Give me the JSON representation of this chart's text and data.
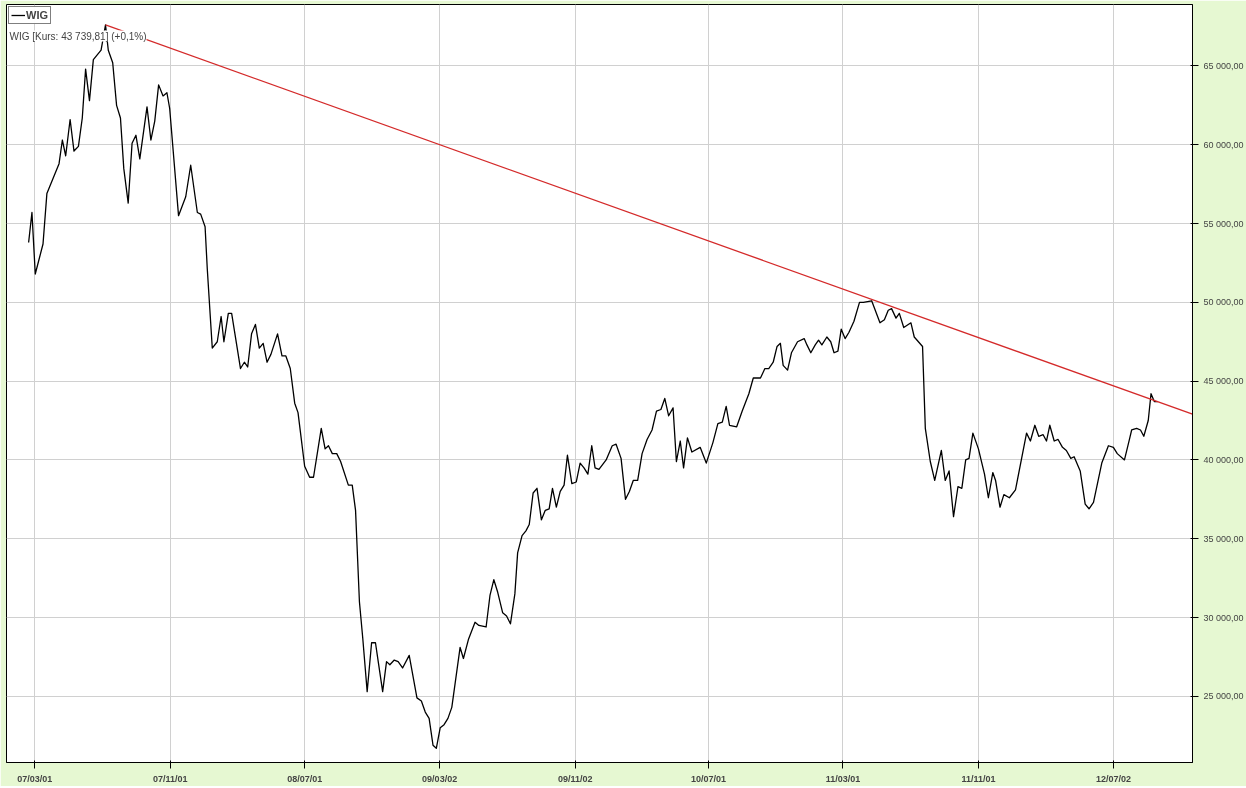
{
  "chart_data": {
    "type": "line",
    "annotations": [
      "WIG [Kurs: 43 739,81] (+0,1%)"
    ],
    "xlim": [
      "2007-01-09",
      "2012-11-22"
    ],
    "ylim": [
      20800,
      68900
    ],
    "xticks": [
      {
        "value": "2007-03-01",
        "label": "07/03/01"
      },
      {
        "value": "2007-11-01",
        "label": "07/11/01"
      },
      {
        "value": "2008-07-01",
        "label": "08/07/01"
      },
      {
        "value": "2009-03-02",
        "label": "09/03/02"
      },
      {
        "value": "2009-11-02",
        "label": "09/11/02"
      },
      {
        "value": "2010-07-01",
        "label": "10/07/01"
      },
      {
        "value": "2011-03-01",
        "label": "11/03/01"
      },
      {
        "value": "2011-11-01",
        "label": "11/11/01"
      },
      {
        "value": "2012-07-02",
        "label": "12/07/02"
      }
    ],
    "yticks": [
      {
        "value": 25000,
        "label": "25 000,00"
      },
      {
        "value": 30000,
        "label": "30 000,00"
      },
      {
        "value": 35000,
        "label": "35 000,00"
      },
      {
        "value": 40000,
        "label": "40 000,00"
      },
      {
        "value": 45000,
        "label": "45 000,00"
      },
      {
        "value": 50000,
        "label": "50 000,00"
      },
      {
        "value": 55000,
        "label": "55 000,00"
      },
      {
        "value": 60000,
        "label": "60 000,00"
      },
      {
        "value": 65000,
        "label": "65 000,00"
      }
    ],
    "grid": true,
    "legend": "top left",
    "series": [
      {
        "name": "WIG",
        "color": "#000000",
        "x": [
          "2007-02-18",
          "2007-02-24",
          "2007-03-02",
          "2007-03-16",
          "2007-03-23",
          "2007-04-14",
          "2007-04-20",
          "2007-04-26",
          "2007-05-04",
          "2007-05-11",
          "2007-05-19",
          "2007-05-26",
          "2007-06-01",
          "2007-06-08",
          "2007-06-15",
          "2007-06-29",
          "2007-07-07",
          "2007-07-12",
          "2007-07-20",
          "2007-07-27",
          "2007-08-03",
          "2007-08-09",
          "2007-08-17",
          "2007-08-24",
          "2007-08-31",
          "2007-09-07",
          "2007-09-20",
          "2007-09-27",
          "2007-10-04",
          "2007-10-11",
          "2007-10-19",
          "2007-10-26",
          "2007-10-31",
          "2007-11-16",
          "2007-11-29",
          "2007-12-08",
          "2007-12-20",
          "2007-12-26",
          "2008-01-03",
          "2008-01-07",
          "2008-01-16",
          "2008-01-25",
          "2008-02-01",
          "2008-02-06",
          "2008-02-14",
          "2008-02-20",
          "2008-03-07",
          "2008-03-14",
          "2008-03-20",
          "2008-03-27",
          "2008-04-03",
          "2008-04-10",
          "2008-04-17",
          "2008-04-24",
          "2008-05-01",
          "2008-05-13",
          "2008-05-21",
          "2008-05-28",
          "2008-06-05",
          "2008-06-13",
          "2008-06-19",
          "2008-07-01",
          "2008-07-10",
          "2008-07-17",
          "2008-07-31",
          "2008-08-07",
          "2008-08-13",
          "2008-08-20",
          "2008-08-28",
          "2008-09-04",
          "2008-09-18",
          "2008-09-25",
          "2008-10-01",
          "2008-10-08",
          "2008-10-14",
          "2008-10-22",
          "2008-10-30",
          "2008-11-06",
          "2008-11-11",
          "2008-11-19",
          "2008-11-26",
          "2008-12-02",
          "2008-12-10",
          "2008-12-17",
          "2008-12-25",
          "2009-01-06",
          "2009-01-20",
          "2009-01-28",
          "2009-02-04",
          "2009-02-11",
          "2009-02-18",
          "2009-02-24",
          "2009-03-03",
          "2009-03-10",
          "2009-03-17",
          "2009-03-24",
          "2009-04-08",
          "2009-04-14",
          "2009-04-23",
          "2009-05-05",
          "2009-05-12",
          "2009-05-25",
          "2009-06-01",
          "2009-06-08",
          "2009-06-15",
          "2009-06-24",
          "2009-07-01",
          "2009-07-08",
          "2009-07-16",
          "2009-07-21",
          "2009-07-29",
          "2009-08-05",
          "2009-08-11",
          "2009-08-18",
          "2009-08-25",
          "2009-09-02",
          "2009-09-09",
          "2009-09-16",
          "2009-09-22",
          "2009-09-29",
          "2009-10-06",
          "2009-10-13",
          "2009-10-19",
          "2009-10-27",
          "2009-11-04",
          "2009-11-11",
          "2009-11-18",
          "2009-11-25",
          "2009-12-02",
          "2009-12-08",
          "2009-12-15",
          "2009-12-28",
          "2010-01-08",
          "2010-01-15",
          "2010-01-24",
          "2010-02-01",
          "2010-02-08",
          "2010-02-15",
          "2010-02-23",
          "2010-03-03",
          "2010-03-12",
          "2010-03-21",
          "2010-03-29",
          "2010-04-06",
          "2010-04-13",
          "2010-04-20",
          "2010-04-28",
          "2010-05-04",
          "2010-05-11",
          "2010-05-17",
          "2010-05-24",
          "2010-06-01",
          "2010-06-16",
          "2010-06-27",
          "2010-07-09",
          "2010-07-18",
          "2010-07-26",
          "2010-08-02",
          "2010-08-08",
          "2010-08-21",
          "2010-08-31",
          "2010-09-12",
          "2010-09-20",
          "2010-10-03",
          "2010-10-11",
          "2010-10-18",
          "2010-10-26",
          "2010-11-02",
          "2010-11-08",
          "2010-11-13",
          "2010-11-21",
          "2010-11-28",
          "2010-12-09",
          "2010-12-21",
          "2010-12-26",
          "2011-01-02",
          "2011-01-10",
          "2011-01-16",
          "2011-01-22",
          "2011-01-31",
          "2011-02-07",
          "2011-02-13",
          "2011-02-20",
          "2011-02-26",
          "2011-03-05",
          "2011-03-12",
          "2011-03-21",
          "2011-03-31",
          "2011-04-07",
          "2011-04-22",
          "2011-05-07",
          "2011-05-15",
          "2011-05-22",
          "2011-05-28",
          "2011-06-05",
          "2011-06-11",
          "2011-06-19",
          "2011-07-02",
          "2011-07-08",
          "2011-07-23",
          "2011-07-28",
          "2011-08-06",
          "2011-08-14",
          "2011-08-26",
          "2011-09-02",
          "2011-09-09",
          "2011-09-17",
          "2011-09-25",
          "2011-10-02",
          "2011-10-09",
          "2011-10-15",
          "2011-10-22",
          "2011-11-01",
          "2011-11-12",
          "2011-11-19",
          "2011-11-27",
          "2011-12-02",
          "2011-12-10",
          "2011-12-17",
          "2011-12-27",
          "2012-01-07",
          "2012-01-27",
          "2012-02-03",
          "2012-02-11",
          "2012-02-18",
          "2012-02-26",
          "2012-03-03",
          "2012-03-09",
          "2012-03-17",
          "2012-03-24",
          "2012-04-01",
          "2012-04-08",
          "2012-04-16",
          "2012-04-22",
          "2012-05-03",
          "2012-05-12",
          "2012-05-19",
          "2012-05-27",
          "2012-06-11",
          "2012-06-23",
          "2012-07-02",
          "2012-07-09",
          "2012-07-22",
          "2012-07-31",
          "2012-08-04",
          "2012-08-13",
          "2012-08-20",
          "2012-08-26",
          "2012-09-03",
          "2012-09-08",
          "2012-09-14",
          "2012-09-20"
        ],
        "values": [
          53800,
          55700,
          51800,
          53700,
          56900,
          58800,
          60300,
          59300,
          61600,
          59600,
          59900,
          61700,
          64800,
          62800,
          65400,
          66000,
          67600,
          66000,
          65200,
          62500,
          61700,
          58500,
          56300,
          60100,
          60600,
          59100,
          62400,
          60300,
          61500,
          63800,
          63100,
          63300,
          62300,
          55500,
          56700,
          58700,
          55700,
          55600,
          54800,
          52100,
          47100,
          47500,
          49100,
          47500,
          49300,
          49300,
          45800,
          46200,
          45900,
          48000,
          48600,
          47100,
          47400,
          46200,
          46700,
          48000,
          46600,
          46600,
          45800,
          43600,
          43000,
          39600,
          38900,
          38900,
          42000,
          40700,
          40900,
          40400,
          40400,
          39900,
          38400,
          38400,
          36800,
          31000,
          28700,
          25300,
          28400,
          28400,
          27200,
          25300,
          27200,
          27000,
          27300,
          27200,
          26800,
          27600,
          24900,
          24700,
          24000,
          23600,
          21900,
          21700,
          23000,
          23200,
          23600,
          24300,
          28100,
          27400,
          28600,
          29700,
          29500,
          29400,
          31400,
          32400,
          31600,
          30300,
          30100,
          29600,
          31500,
          34100,
          35200,
          35500,
          35900,
          37900,
          38200,
          36200,
          36800,
          36900,
          38200,
          37000,
          38000,
          38400,
          40300,
          38500,
          38600,
          39800,
          39500,
          39100,
          40900,
          39500,
          39400,
          40000,
          40900,
          41000,
          40100,
          37500,
          38000,
          38700,
          38700,
          40400,
          41300,
          41900,
          43100,
          43200,
          43900,
          42800,
          43300,
          39900,
          41200,
          39500,
          41400,
          40500,
          40800,
          39800,
          41100,
          42300,
          42400,
          43400,
          42200,
          42100,
          43100,
          44200,
          45200,
          45200,
          45800,
          45800,
          46200,
          47200,
          47400,
          46000,
          45700,
          46800,
          47500,
          47700,
          47300,
          46800,
          47300,
          47600,
          47300,
          47800,
          47500,
          46800,
          46900,
          48300,
          47700,
          48100,
          48800,
          50000,
          50000,
          50100,
          48700,
          48900,
          49500,
          49600,
          49000,
          49300,
          48400,
          48700,
          47800,
          47200,
          42000,
          39900,
          38700,
          40600,
          38700,
          39300,
          36400,
          38300,
          38200,
          40000,
          40100,
          41700,
          40700,
          39100,
          37600,
          39200,
          38700,
          37000,
          37800,
          37600,
          38100,
          41700,
          41200,
          42200,
          41500,
          41600,
          41200,
          42200,
          41200,
          41300,
          40800,
          40600,
          40100,
          40200,
          39300,
          37200,
          36900,
          37300,
          39800,
          40900,
          40800,
          40400,
          40000,
          41300,
          41900,
          42000,
          41900,
          41500,
          42500,
          44200,
          43700,
          43700
        ]
      },
      {
        "color": "#d42a2a",
        "x": [
          "2007-07-07",
          "2012-11-22"
        ],
        "values": [
          67600,
          42900
        ]
      }
    ]
  }
}
